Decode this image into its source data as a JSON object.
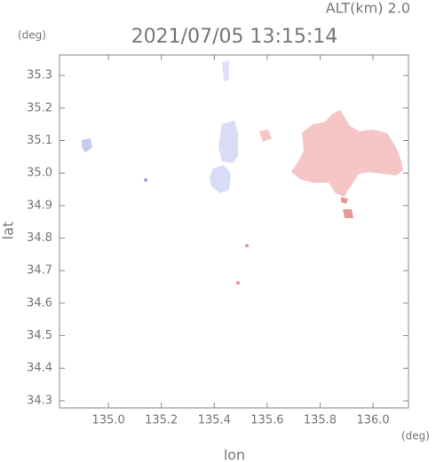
{
  "chart_data": {
    "type": "map",
    "annotation": "ALT(km)  2.0",
    "title": "2021/07/05 13:15:14",
    "y_unit": "(deg)",
    "x_unit": "(deg)",
    "xlabel": "lon",
    "ylabel": "lat",
    "xlim": [
      134.815,
      136.134
    ],
    "ylim": [
      34.278,
      35.363
    ],
    "xticks": [
      {
        "value": 135.0,
        "label": "135.0"
      },
      135.2,
      135.4,
      135.6,
      135.8,
      {
        "value": 136.0,
        "label": "136.0"
      }
    ],
    "yticks": [
      34.3,
      34.4,
      34.5,
      34.6,
      34.7,
      34.8,
      34.9,
      {
        "value": 35.0,
        "label": "35.0"
      },
      35.1,
      35.2,
      35.3
    ]
  }
}
